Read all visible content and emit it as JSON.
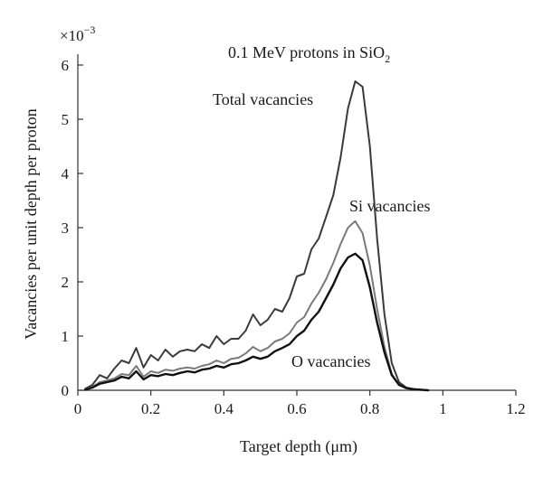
{
  "chart_data": {
    "type": "line",
    "title": "0.1 MeV protons in SiO",
    "title_subscript": "2",
    "xlabel": "Target depth (μm)",
    "ylabel": "Vacancies per unit depth per proton",
    "y_multiplier": "×10",
    "y_multiplier_exponent": "−3",
    "xlim": [
      0,
      1.2
    ],
    "ylim": [
      0,
      6.2
    ],
    "x_ticks": [
      0,
      0.2,
      0.4,
      0.6,
      0.8,
      1,
      1.2
    ],
    "x_tick_labels": [
      "0",
      "0.2",
      "0.4",
      "0.6",
      "0.8",
      "1",
      "1.2"
    ],
    "y_ticks": [
      0,
      1,
      2,
      3,
      4,
      5,
      6
    ],
    "y_tick_labels": [
      "0",
      "1",
      "2",
      "3",
      "4",
      "5",
      "6"
    ],
    "grid": false,
    "series": [
      {
        "name": "Total vacancies",
        "color": "#3a3a3a",
        "x": [
          0.02,
          0.04,
          0.06,
          0.08,
          0.1,
          0.12,
          0.14,
          0.16,
          0.18,
          0.2,
          0.22,
          0.24,
          0.26,
          0.28,
          0.3,
          0.32,
          0.34,
          0.36,
          0.38,
          0.4,
          0.42,
          0.44,
          0.46,
          0.48,
          0.5,
          0.52,
          0.54,
          0.56,
          0.58,
          0.6,
          0.62,
          0.64,
          0.66,
          0.68,
          0.7,
          0.72,
          0.74,
          0.76,
          0.78,
          0.8,
          0.82,
          0.84,
          0.86,
          0.88,
          0.9,
          0.92,
          0.94,
          0.96
        ],
        "y": [
          0.03,
          0.1,
          0.28,
          0.22,
          0.4,
          0.55,
          0.5,
          0.78,
          0.42,
          0.65,
          0.55,
          0.75,
          0.62,
          0.72,
          0.75,
          0.72,
          0.85,
          0.78,
          1.0,
          0.85,
          0.95,
          0.95,
          1.1,
          1.4,
          1.2,
          1.3,
          1.5,
          1.45,
          1.7,
          2.1,
          2.15,
          2.6,
          2.8,
          3.2,
          3.6,
          4.3,
          5.2,
          5.7,
          5.6,
          4.5,
          2.8,
          1.4,
          0.5,
          0.15,
          0.05,
          0.02,
          0.01,
          0.0
        ]
      },
      {
        "name": "Si vacancies",
        "color": "#7a7a7a",
        "x": [
          0.02,
          0.04,
          0.06,
          0.08,
          0.1,
          0.12,
          0.14,
          0.16,
          0.18,
          0.2,
          0.22,
          0.24,
          0.26,
          0.28,
          0.3,
          0.32,
          0.34,
          0.36,
          0.38,
          0.4,
          0.42,
          0.44,
          0.46,
          0.48,
          0.5,
          0.52,
          0.54,
          0.56,
          0.58,
          0.6,
          0.62,
          0.64,
          0.66,
          0.68,
          0.7,
          0.72,
          0.74,
          0.76,
          0.78,
          0.8,
          0.82,
          0.84,
          0.86,
          0.88,
          0.9,
          0.92,
          0.94,
          0.96
        ],
        "y": [
          0.02,
          0.06,
          0.15,
          0.18,
          0.22,
          0.3,
          0.28,
          0.45,
          0.25,
          0.35,
          0.32,
          0.38,
          0.36,
          0.4,
          0.42,
          0.4,
          0.45,
          0.48,
          0.55,
          0.5,
          0.58,
          0.6,
          0.68,
          0.8,
          0.72,
          0.78,
          0.9,
          0.95,
          1.05,
          1.25,
          1.35,
          1.6,
          1.8,
          2.05,
          2.35,
          2.7,
          3.0,
          3.12,
          2.9,
          2.3,
          1.5,
          0.8,
          0.3,
          0.1,
          0.04,
          0.02,
          0.01,
          0.0
        ]
      },
      {
        "name": "O vacancies",
        "color": "#111111",
        "x": [
          0.02,
          0.04,
          0.06,
          0.08,
          0.1,
          0.12,
          0.14,
          0.16,
          0.18,
          0.2,
          0.22,
          0.24,
          0.26,
          0.28,
          0.3,
          0.32,
          0.34,
          0.36,
          0.38,
          0.4,
          0.42,
          0.44,
          0.46,
          0.48,
          0.5,
          0.52,
          0.54,
          0.56,
          0.58,
          0.6,
          0.62,
          0.64,
          0.66,
          0.68,
          0.7,
          0.72,
          0.74,
          0.76,
          0.78,
          0.8,
          0.82,
          0.84,
          0.86,
          0.88,
          0.9,
          0.92,
          0.94,
          0.96
        ],
        "y": [
          0.01,
          0.05,
          0.12,
          0.15,
          0.18,
          0.25,
          0.22,
          0.35,
          0.2,
          0.28,
          0.26,
          0.3,
          0.28,
          0.32,
          0.35,
          0.33,
          0.38,
          0.4,
          0.45,
          0.42,
          0.48,
          0.5,
          0.55,
          0.62,
          0.58,
          0.62,
          0.72,
          0.78,
          0.85,
          1.0,
          1.1,
          1.3,
          1.45,
          1.7,
          1.95,
          2.25,
          2.45,
          2.52,
          2.4,
          1.9,
          1.25,
          0.7,
          0.28,
          0.1,
          0.04,
          0.02,
          0.01,
          0.0
        ]
      }
    ]
  }
}
